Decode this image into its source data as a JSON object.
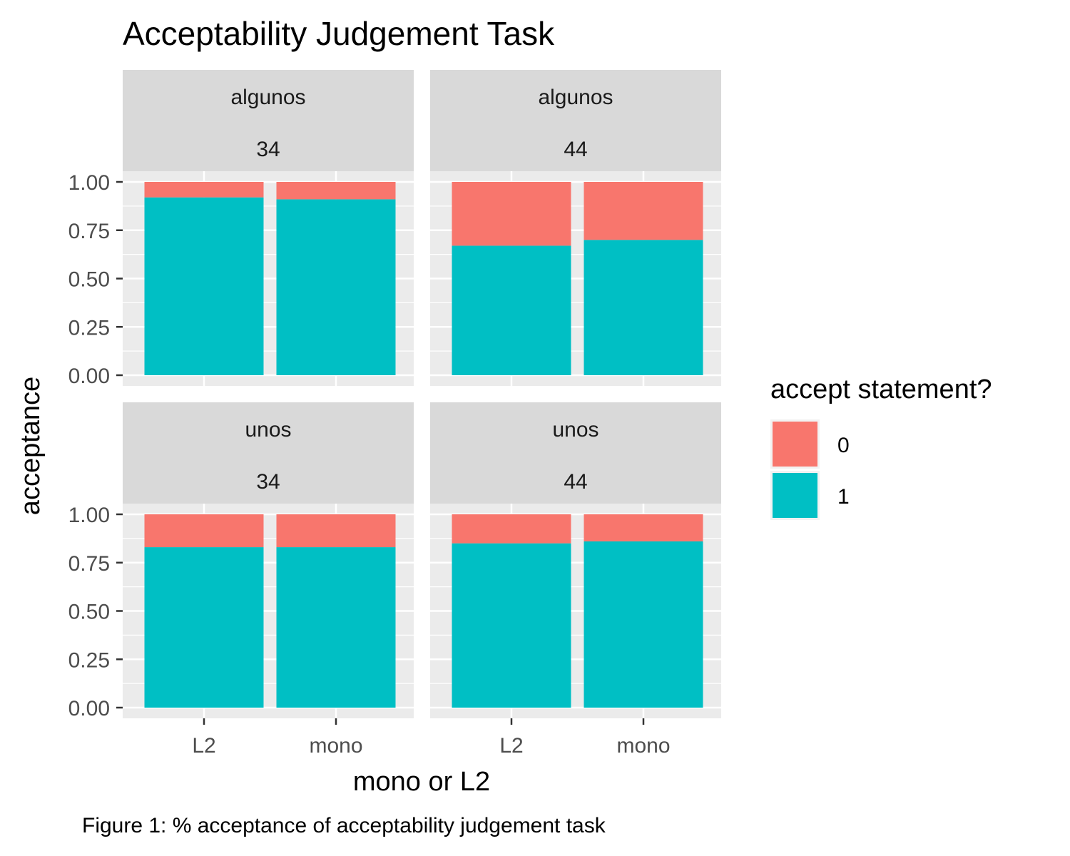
{
  "chart_data": {
    "type": "bar",
    "stacked": true,
    "title": "Acceptability Judgement Task",
    "xlabel": "mono or L2",
    "ylabel": "acceptance",
    "caption": "Figure 1: % acceptance of acceptability judgement task",
    "categories": [
      "L2",
      "mono"
    ],
    "ylim": [
      0,
      1
    ],
    "yticks": [
      "0.00",
      "0.25",
      "0.50",
      "0.75",
      "1.00"
    ],
    "grid": true,
    "legend": {
      "title": "accept statement?",
      "position": "right",
      "entries": [
        {
          "label": "0",
          "color": "#F8766D"
        },
        {
          "label": "1",
          "color": "#00BFC4"
        }
      ]
    },
    "panels": [
      {
        "strip": [
          "algunos",
          "34"
        ],
        "series": [
          {
            "name": "0",
            "values": [
              0.08,
              0.09
            ]
          },
          {
            "name": "1",
            "values": [
              0.92,
              0.91
            ]
          }
        ]
      },
      {
        "strip": [
          "algunos",
          "44"
        ],
        "series": [
          {
            "name": "0",
            "values": [
              0.33,
              0.3
            ]
          },
          {
            "name": "1",
            "values": [
              0.67,
              0.7
            ]
          }
        ]
      },
      {
        "strip": [
          "unos",
          "34"
        ],
        "series": [
          {
            "name": "0",
            "values": [
              0.17,
              0.17
            ]
          },
          {
            "name": "1",
            "values": [
              0.83,
              0.83
            ]
          }
        ]
      },
      {
        "strip": [
          "unos",
          "44"
        ],
        "series": [
          {
            "name": "0",
            "values": [
              0.15,
              0.14
            ]
          },
          {
            "name": "1",
            "values": [
              0.85,
              0.86
            ]
          }
        ]
      }
    ]
  }
}
